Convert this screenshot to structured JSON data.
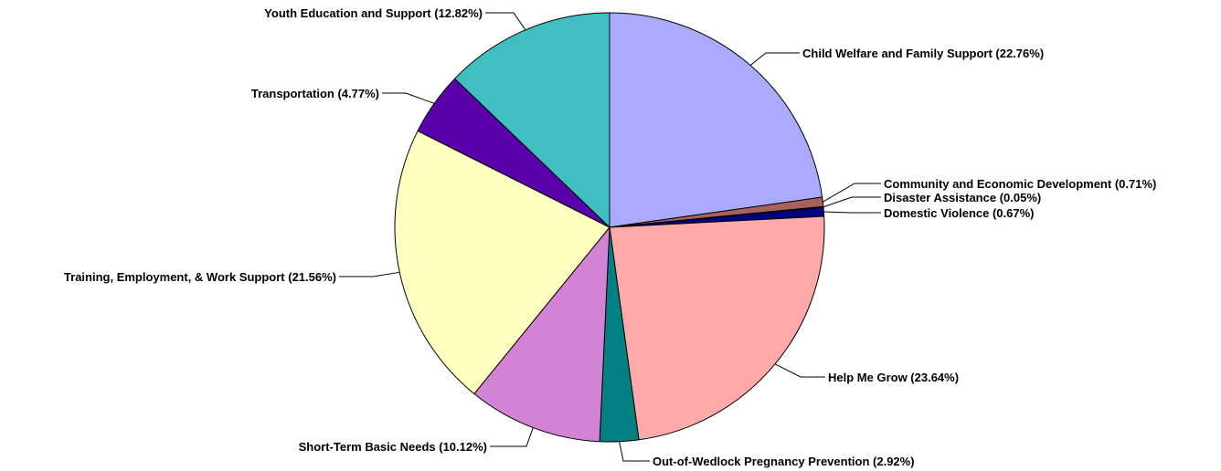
{
  "chart_data": {
    "type": "pie",
    "start_angle_deg": 0,
    "direction": "clockwise",
    "slices": [
      {
        "key": "child-welfare",
        "label": "Child Welfare and Family Support (22.76%)",
        "value": 22.76,
        "color": "#aaaaff"
      },
      {
        "key": "community-econ",
        "label": "Community and Economic Development (0.71%)",
        "value": 0.71,
        "color": "#a8625c"
      },
      {
        "key": "disaster",
        "label": "Disaster Assistance (0.05%)",
        "value": 0.05,
        "color": "#ffffcc"
      },
      {
        "key": "domestic-violence",
        "label": "Domestic Violence (0.67%)",
        "value": 0.67,
        "color": "#000080"
      },
      {
        "key": "help-me-grow",
        "label": "Help Me Grow (23.64%)",
        "value": 23.64,
        "color": "#ffaaaa"
      },
      {
        "key": "wedlock",
        "label": "Out-of-Wedlock Pregnancy Prevention   (2.92%)",
        "value": 2.92,
        "color": "#008080"
      },
      {
        "key": "short-term",
        "label": "Short-Term Basic Needs (10.12%)",
        "value": 10.12,
        "color": "#d383d3"
      },
      {
        "key": "training",
        "label": "Training, Employment, & Work Support (21.56%)",
        "value": 21.56,
        "color": "#ffffc0"
      },
      {
        "key": "transportation",
        "label": "Transportation  (4.77%)",
        "value": 4.77,
        "color": "#5a00aa"
      },
      {
        "key": "youth",
        "label": "Youth Education and Support  (12.82%)",
        "value": 12.82,
        "color": "#3fbfbf"
      }
    ]
  }
}
